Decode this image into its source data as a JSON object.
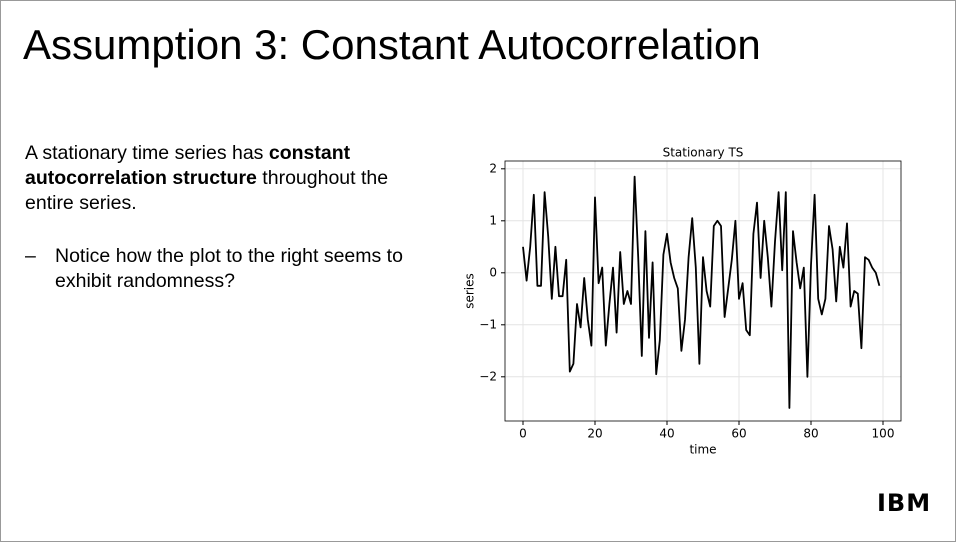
{
  "slide": {
    "title": "Assumption 3: Constant Autocorrelation",
    "paragraph": [
      "A stationary time series has ",
      "constant autocorrelation structure",
      " throughout the entire series."
    ],
    "bullet_marker": "–",
    "bullet": "Notice how the plot to the right seems to exhibit randomness?",
    "logo": "IBM"
  },
  "chart_data": {
    "type": "line",
    "title": "Stationary TS",
    "x_label": "time",
    "y_label": "series",
    "x": [
      0,
      1,
      2,
      3,
      4,
      5,
      6,
      7,
      8,
      9,
      10,
      11,
      12,
      13,
      14,
      15,
      16,
      17,
      18,
      19,
      20,
      21,
      22,
      23,
      24,
      25,
      26,
      27,
      28,
      29,
      30,
      31,
      32,
      33,
      34,
      35,
      36,
      37,
      38,
      39,
      40,
      41,
      42,
      43,
      44,
      45,
      46,
      47,
      48,
      49,
      50,
      51,
      52,
      53,
      54,
      55,
      56,
      57,
      58,
      59,
      60,
      61,
      62,
      63,
      64,
      65,
      66,
      67,
      68,
      69,
      70,
      71,
      72,
      73,
      74,
      75,
      76,
      77,
      78,
      79,
      80,
      81,
      82,
      83,
      84,
      85,
      86,
      87,
      88,
      89,
      90,
      91,
      92,
      93,
      94,
      95,
      96,
      97,
      98,
      99
    ],
    "series": [
      {
        "color": "#000000",
        "values": [
          0.5,
          -0.15,
          0.5,
          1.5,
          -0.25,
          -0.25,
          1.55,
          0.7,
          -0.5,
          0.5,
          -0.45,
          -0.45,
          0.25,
          -1.9,
          -1.75,
          -0.6,
          -1.05,
          -0.1,
          -0.9,
          -1.4,
          1.45,
          -0.2,
          0.1,
          -1.4,
          -0.6,
          0.1,
          -1.15,
          0.4,
          -0.6,
          -0.35,
          -0.6,
          1.85,
          0.3,
          -1.6,
          0.8,
          -1.25,
          0.2,
          -1.95,
          -1.3,
          0.35,
          0.75,
          0.2,
          -0.1,
          -0.3,
          -1.5,
          -0.9,
          0.3,
          1.05,
          0.1,
          -1.75,
          0.3,
          -0.35,
          -0.65,
          0.9,
          1.0,
          0.9,
          -0.85,
          -0.3,
          0.25,
          1.0,
          -0.5,
          -0.2,
          -1.1,
          -1.2,
          0.75,
          1.35,
          -0.1,
          1.0,
          0.3,
          -0.65,
          0.6,
          1.55,
          0.05,
          1.55,
          -2.6,
          0.8,
          0.2,
          -0.3,
          0.1,
          -2.0,
          0.15,
          1.5,
          -0.5,
          -0.8,
          -0.5,
          0.9,
          0.45,
          -0.55,
          0.5,
          0.1,
          0.95,
          -0.65,
          -0.35,
          -0.4,
          -1.45,
          0.3,
          0.25,
          0.1,
          0.0,
          -0.25
        ]
      }
    ],
    "xlim": [
      -5,
      105
    ],
    "ylim": [
      -2.85,
      2.15
    ],
    "xticks": [
      0,
      20,
      40,
      60,
      80,
      100
    ],
    "yticks": [
      {
        "value": -2,
        "label": "−2"
      },
      {
        "value": -1,
        "label": "−1"
      },
      0,
      1,
      2
    ],
    "grid": true
  }
}
